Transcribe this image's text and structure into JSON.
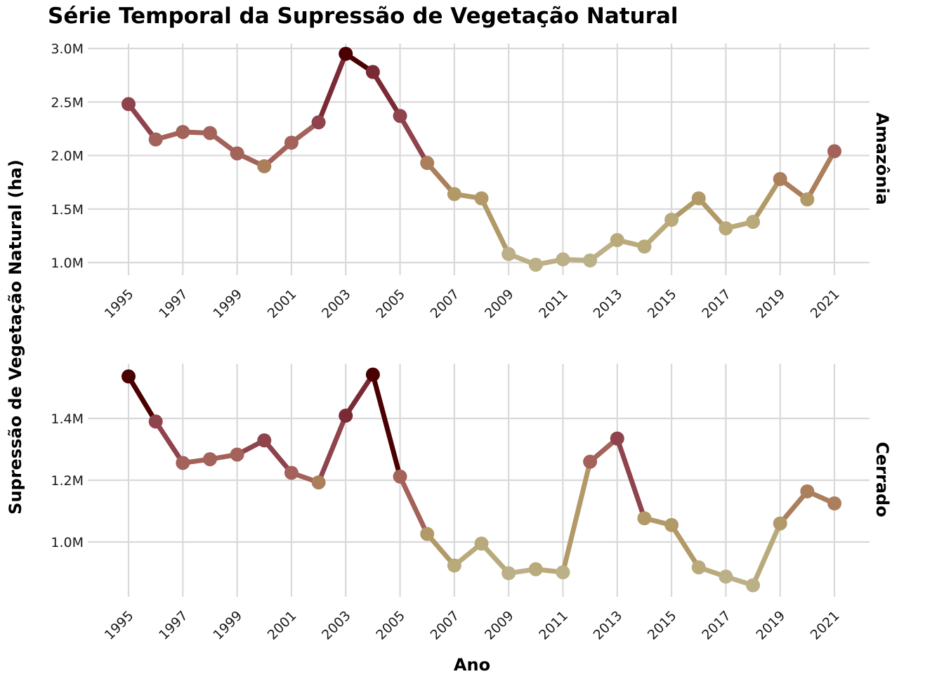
{
  "chart_data": {
    "type": "line",
    "title": "Série Temporal da Supressão de Vegetação Natural",
    "xlabel": "Ano",
    "ylabel": "Supressão de Vegetação Natural (ha)",
    "grid": true,
    "x_tick_labels": [
      "1995",
      "1997",
      "1999",
      "2001",
      "2003",
      "2005",
      "2007",
      "2009",
      "2011",
      "2013",
      "2015",
      "2017",
      "2019",
      "2021"
    ],
    "x": [
      1995,
      1996,
      1997,
      1998,
      1999,
      2000,
      2001,
      2002,
      2003,
      2004,
      2005,
      2006,
      2007,
      2008,
      2009,
      2010,
      2011,
      2012,
      2013,
      2014,
      2015,
      2016,
      2017,
      2018,
      2019,
      2020,
      2021
    ],
    "colors": [
      "#4a0000",
      "#7a2a35",
      "#8e434d",
      "#a3625a",
      "#ab7e5c",
      "#b29a68",
      "#b8aa7a",
      "#bcb088"
    ],
    "panels": [
      {
        "name": "Amazônia",
        "ylim": [
          0.87,
          3.05
        ],
        "y_ticks": [
          1.0,
          1.5,
          2.0,
          2.5,
          3.0
        ],
        "y_tick_labels": [
          "1.0M",
          "1.5M",
          "2.0M",
          "2.5M",
          "3.0M"
        ],
        "values": [
          2.48,
          2.15,
          2.22,
          2.21,
          2.02,
          1.9,
          2.12,
          2.31,
          2.95,
          2.78,
          2.37,
          1.93,
          1.64,
          1.6,
          1.08,
          0.98,
          1.03,
          1.02,
          1.21,
          1.15,
          1.4,
          1.6,
          1.32,
          1.38,
          1.78,
          1.59,
          2.04
        ]
      },
      {
        "name": "Cerrado",
        "ylim": [
          0.82,
          1.57
        ],
        "y_ticks": [
          1.0,
          1.2,
          1.4
        ],
        "y_tick_labels": [
          "1.0M",
          "1.2M",
          "1.4M"
        ],
        "values": [
          1.536,
          1.39,
          1.256,
          1.268,
          1.283,
          1.329,
          1.224,
          1.193,
          1.409,
          1.542,
          1.212,
          1.026,
          0.924,
          0.995,
          0.899,
          0.912,
          0.902,
          1.26,
          1.335,
          1.077,
          1.055,
          0.918,
          0.888,
          0.86,
          1.06,
          1.164,
          1.125
        ]
      }
    ]
  }
}
